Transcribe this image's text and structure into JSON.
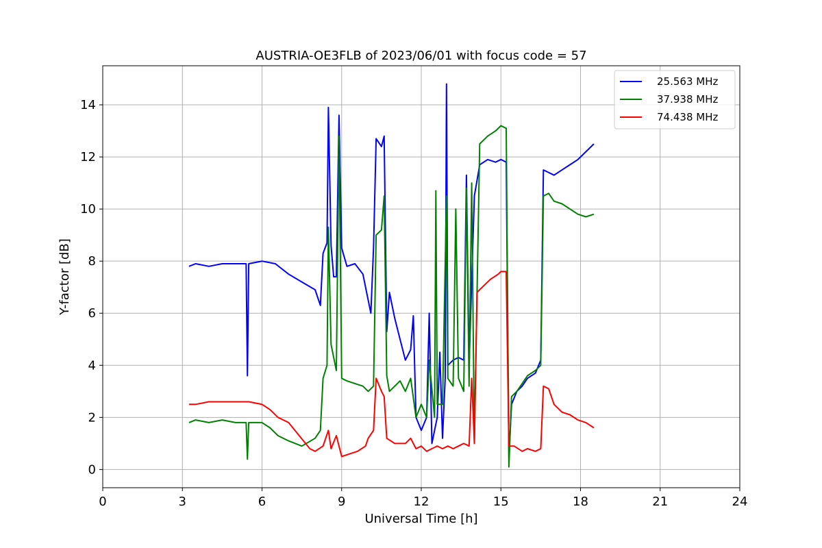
{
  "chart_data": {
    "type": "line",
    "title": "AUSTRIA-OE3FLB of 2023/06/01 with focus code = 57",
    "xlabel": "Universal Time [h]",
    "ylabel": "Y-factor [dB]",
    "xlim": [
      0,
      24
    ],
    "ylim": [
      -0.7,
      15.5
    ],
    "xticks": [
      0,
      3,
      6,
      9,
      12,
      15,
      18,
      21,
      24
    ],
    "yticks": [
      0,
      2,
      4,
      6,
      8,
      10,
      12,
      14
    ],
    "grid": true,
    "legend_position": "top-right",
    "series": [
      {
        "name": "25.563 MHz",
        "color": "#0000ff",
        "points": [
          [
            3.25,
            7.8
          ],
          [
            3.5,
            7.9
          ],
          [
            4.0,
            7.8
          ],
          [
            4.5,
            7.9
          ],
          [
            5.0,
            7.9
          ],
          [
            5.4,
            7.9
          ],
          [
            5.45,
            3.6
          ],
          [
            5.5,
            7.9
          ],
          [
            6.0,
            8.0
          ],
          [
            6.5,
            7.9
          ],
          [
            7.0,
            7.5
          ],
          [
            7.5,
            7.2
          ],
          [
            8.0,
            6.9
          ],
          [
            8.2,
            6.3
          ],
          [
            8.3,
            8.3
          ],
          [
            8.45,
            8.7
          ],
          [
            8.5,
            13.9
          ],
          [
            8.6,
            8.6
          ],
          [
            8.7,
            7.4
          ],
          [
            8.8,
            7.4
          ],
          [
            8.9,
            13.6
          ],
          [
            9.0,
            8.5
          ],
          [
            9.2,
            7.8
          ],
          [
            9.5,
            7.9
          ],
          [
            9.8,
            7.5
          ],
          [
            10.0,
            6.5
          ],
          [
            10.1,
            6.0
          ],
          [
            10.2,
            8.5
          ],
          [
            10.3,
            12.7
          ],
          [
            10.5,
            12.4
          ],
          [
            10.6,
            12.8
          ],
          [
            10.7,
            5.3
          ],
          [
            10.8,
            6.8
          ],
          [
            11.0,
            5.8
          ],
          [
            11.2,
            5.0
          ],
          [
            11.4,
            4.2
          ],
          [
            11.6,
            4.6
          ],
          [
            11.7,
            5.9
          ],
          [
            11.8,
            2.0
          ],
          [
            12.0,
            1.5
          ],
          [
            12.2,
            2.0
          ],
          [
            12.3,
            6.0
          ],
          [
            12.4,
            1.0
          ],
          [
            12.6,
            2.0
          ],
          [
            12.7,
            4.5
          ],
          [
            12.8,
            1.2
          ],
          [
            12.9,
            3.5
          ],
          [
            12.95,
            14.8
          ],
          [
            13.0,
            4.0
          ],
          [
            13.2,
            4.2
          ],
          [
            13.4,
            4.3
          ],
          [
            13.6,
            4.2
          ],
          [
            13.7,
            11.3
          ],
          [
            13.8,
            4.0
          ],
          [
            14.0,
            10.5
          ],
          [
            14.2,
            11.7
          ],
          [
            14.5,
            11.9
          ],
          [
            14.8,
            11.8
          ],
          [
            15.0,
            11.9
          ],
          [
            15.2,
            11.8
          ],
          [
            15.3,
            0.5
          ],
          [
            15.4,
            2.5
          ],
          [
            15.6,
            3.0
          ],
          [
            15.8,
            3.2
          ],
          [
            16.0,
            3.5
          ],
          [
            16.3,
            3.7
          ],
          [
            16.5,
            4.2
          ],
          [
            16.6,
            11.5
          ],
          [
            16.8,
            11.4
          ],
          [
            17.0,
            11.3
          ],
          [
            17.3,
            11.5
          ],
          [
            17.6,
            11.7
          ],
          [
            17.9,
            11.9
          ],
          [
            18.2,
            12.2
          ],
          [
            18.5,
            12.5
          ]
        ]
      },
      {
        "name": "37.938 MHz",
        "color": "#008000",
        "points": [
          [
            3.25,
            1.8
          ],
          [
            3.5,
            1.9
          ],
          [
            4.0,
            1.8
          ],
          [
            4.5,
            1.9
          ],
          [
            5.0,
            1.8
          ],
          [
            5.4,
            1.8
          ],
          [
            5.45,
            0.4
          ],
          [
            5.5,
            1.8
          ],
          [
            6.0,
            1.8
          ],
          [
            6.3,
            1.6
          ],
          [
            6.6,
            1.3
          ],
          [
            7.0,
            1.1
          ],
          [
            7.5,
            0.9
          ],
          [
            8.0,
            1.2
          ],
          [
            8.2,
            1.5
          ],
          [
            8.3,
            3.5
          ],
          [
            8.45,
            4.0
          ],
          [
            8.5,
            9.3
          ],
          [
            8.6,
            4.8
          ],
          [
            8.8,
            3.8
          ],
          [
            8.9,
            12.8
          ],
          [
            9.0,
            3.5
          ],
          [
            9.2,
            3.4
          ],
          [
            9.5,
            3.3
          ],
          [
            9.8,
            3.2
          ],
          [
            10.0,
            3.0
          ],
          [
            10.2,
            3.2
          ],
          [
            10.3,
            9.0
          ],
          [
            10.5,
            9.2
          ],
          [
            10.6,
            10.5
          ],
          [
            10.7,
            3.6
          ],
          [
            10.8,
            3.0
          ],
          [
            11.0,
            3.2
          ],
          [
            11.2,
            3.4
          ],
          [
            11.4,
            3.0
          ],
          [
            11.6,
            3.5
          ],
          [
            11.8,
            2.0
          ],
          [
            12.0,
            2.5
          ],
          [
            12.2,
            2.0
          ],
          [
            12.3,
            4.2
          ],
          [
            12.5,
            2.0
          ],
          [
            12.55,
            10.7
          ],
          [
            12.6,
            2.5
          ],
          [
            12.8,
            2.5
          ],
          [
            12.95,
            10.5
          ],
          [
            13.0,
            3.5
          ],
          [
            13.2,
            3.2
          ],
          [
            13.3,
            10.0
          ],
          [
            13.4,
            3.5
          ],
          [
            13.6,
            3.0
          ],
          [
            13.7,
            10.8
          ],
          [
            13.8,
            3.2
          ],
          [
            13.9,
            11.0
          ],
          [
            14.0,
            1.0
          ],
          [
            14.2,
            12.5
          ],
          [
            14.5,
            12.8
          ],
          [
            14.8,
            13.0
          ],
          [
            15.0,
            13.2
          ],
          [
            15.2,
            13.1
          ],
          [
            15.3,
            0.1
          ],
          [
            15.4,
            2.8
          ],
          [
            15.6,
            3.0
          ],
          [
            15.8,
            3.3
          ],
          [
            16.0,
            3.6
          ],
          [
            16.3,
            3.8
          ],
          [
            16.5,
            4.0
          ],
          [
            16.6,
            10.5
          ],
          [
            16.8,
            10.6
          ],
          [
            17.0,
            10.3
          ],
          [
            17.3,
            10.2
          ],
          [
            17.6,
            10.0
          ],
          [
            17.9,
            9.8
          ],
          [
            18.2,
            9.7
          ],
          [
            18.5,
            9.8
          ]
        ]
      },
      {
        "name": "74.438 MHz",
        "color": "#ff0000",
        "points": [
          [
            3.25,
            2.5
          ],
          [
            3.5,
            2.5
          ],
          [
            4.0,
            2.6
          ],
          [
            4.5,
            2.6
          ],
          [
            5.0,
            2.6
          ],
          [
            5.5,
            2.6
          ],
          [
            6.0,
            2.5
          ],
          [
            6.3,
            2.3
          ],
          [
            6.6,
            2.0
          ],
          [
            7.0,
            1.8
          ],
          [
            7.4,
            1.3
          ],
          [
            7.8,
            0.8
          ],
          [
            8.0,
            0.7
          ],
          [
            8.3,
            0.9
          ],
          [
            8.5,
            1.5
          ],
          [
            8.6,
            0.8
          ],
          [
            8.8,
            1.3
          ],
          [
            9.0,
            0.5
          ],
          [
            9.3,
            0.6
          ],
          [
            9.6,
            0.7
          ],
          [
            9.9,
            0.9
          ],
          [
            10.0,
            1.2
          ],
          [
            10.2,
            1.5
          ],
          [
            10.3,
            3.5
          ],
          [
            10.5,
            3.0
          ],
          [
            10.6,
            2.8
          ],
          [
            10.7,
            1.2
          ],
          [
            11.0,
            1.0
          ],
          [
            11.4,
            1.0
          ],
          [
            11.6,
            1.2
          ],
          [
            11.8,
            0.8
          ],
          [
            12.0,
            0.9
          ],
          [
            12.2,
            0.7
          ],
          [
            12.4,
            0.8
          ],
          [
            12.6,
            0.9
          ],
          [
            12.8,
            0.8
          ],
          [
            13.0,
            0.9
          ],
          [
            13.2,
            0.8
          ],
          [
            13.4,
            0.9
          ],
          [
            13.6,
            1.0
          ],
          [
            13.8,
            0.9
          ],
          [
            13.9,
            3.5
          ],
          [
            14.0,
            1.0
          ],
          [
            14.1,
            6.8
          ],
          [
            14.3,
            7.0
          ],
          [
            14.6,
            7.3
          ],
          [
            14.9,
            7.5
          ],
          [
            15.0,
            7.6
          ],
          [
            15.2,
            7.6
          ],
          [
            15.3,
            0.9
          ],
          [
            15.5,
            0.9
          ],
          [
            15.8,
            0.7
          ],
          [
            16.0,
            0.8
          ],
          [
            16.3,
            0.7
          ],
          [
            16.5,
            0.8
          ],
          [
            16.6,
            3.2
          ],
          [
            16.8,
            3.1
          ],
          [
            17.0,
            2.5
          ],
          [
            17.3,
            2.2
          ],
          [
            17.6,
            2.1
          ],
          [
            17.9,
            1.9
          ],
          [
            18.2,
            1.8
          ],
          [
            18.5,
            1.6
          ]
        ]
      }
    ]
  }
}
